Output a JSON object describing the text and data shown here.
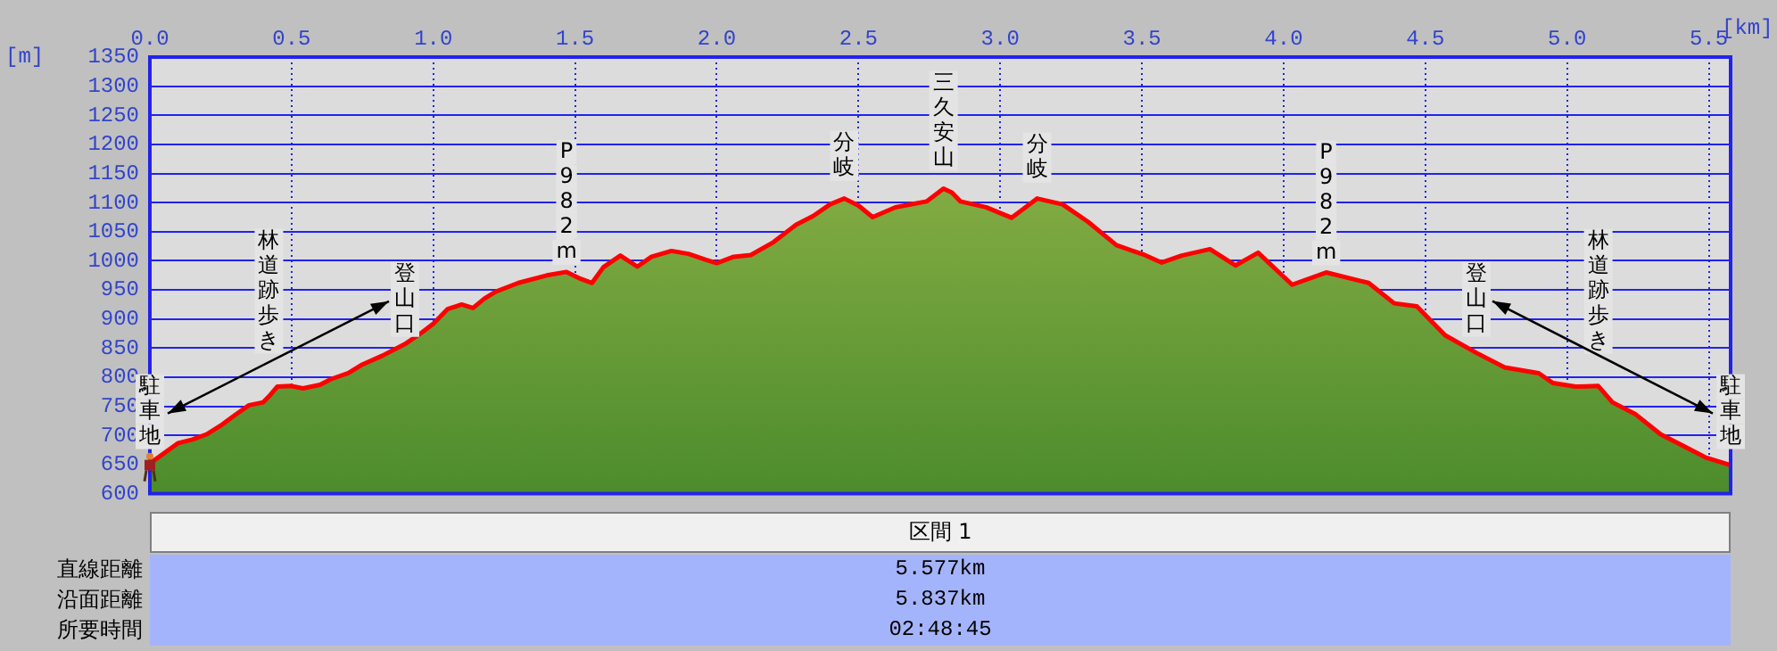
{
  "chart_data": {
    "type": "area",
    "xlabel": "[km]",
    "ylabel": "[m]",
    "x": [
      0,
      0.1,
      0.15,
      0.2,
      0.25,
      0.3,
      0.35,
      0.4,
      0.42,
      0.45,
      0.5,
      0.54,
      0.6,
      0.64,
      0.7,
      0.75,
      0.82,
      0.9,
      0.96,
      1.0,
      1.05,
      1.1,
      1.14,
      1.18,
      1.22,
      1.3,
      1.4,
      1.47,
      1.52,
      1.56,
      1.6,
      1.66,
      1.72,
      1.77,
      1.84,
      1.9,
      1.96,
      2.0,
      2.06,
      2.12,
      2.2,
      2.28,
      2.34,
      2.4,
      2.45,
      2.5,
      2.55,
      2.63,
      2.74,
      2.8,
      2.83,
      2.86,
      2.95,
      3.04,
      3.13,
      3.22,
      3.31,
      3.41,
      3.51,
      3.57,
      3.64,
      3.74,
      3.83,
      3.91,
      4.03,
      4.15,
      4.3,
      4.39,
      4.47,
      4.57,
      4.68,
      4.78,
      4.9,
      4.95,
      5.03,
      5.11,
      5.16,
      5.24,
      5.33,
      5.41,
      5.49,
      5.577
    ],
    "series": [
      {
        "color": "#ff0000",
        "values": [
          652,
          687,
          693,
          702,
          717,
          735,
          752,
          757,
          767,
          784,
          785,
          781,
          787,
          797,
          807,
          822,
          837,
          857,
          877,
          892,
          917,
          925,
          919,
          935,
          947,
          962,
          975,
          981,
          969,
          962,
          989,
          1009,
          990,
          1007,
          1017,
          1012,
          1002,
          996,
          1007,
          1010,
          1032,
          1062,
          1077,
          1097,
          1107,
          1095,
          1075,
          1092,
          1102,
          1124,
          1117,
          1102,
          1092,
          1074,
          1107,
          1097,
          1067,
          1027,
          1010,
          997,
          1009,
          1020,
          992,
          1014,
          959,
          980,
          962,
          927,
          922,
          872,
          842,
          817,
          807,
          790,
          784,
          785,
          757,
          737,
          702,
          682,
          662,
          649
        ]
      }
    ],
    "xlim": [
      0,
      5.577
    ],
    "xticks": [
      {
        "value": 0,
        "label": "0.0"
      },
      {
        "value": 0.5,
        "label": "0.5"
      },
      {
        "value": 1,
        "label": "1.0"
      },
      {
        "value": 1.5,
        "label": "1.5"
      },
      {
        "value": 2,
        "label": "2.0"
      },
      {
        "value": 2.5,
        "label": "2.5"
      },
      {
        "value": 3,
        "label": "3.0"
      },
      {
        "value": 3.5,
        "label": "3.5"
      },
      {
        "value": 4,
        "label": "4.0"
      },
      {
        "value": 4.5,
        "label": "4.5"
      },
      {
        "value": 5,
        "label": "5.0"
      },
      {
        "value": 5.5,
        "label": "5.5"
      }
    ],
    "ylim": [
      600,
      1350
    ],
    "yticks": [
      600,
      650,
      700,
      750,
      800,
      850,
      900,
      950,
      1000,
      1050,
      1100,
      1150,
      1200,
      1250,
      1300,
      1350
    ],
    "grid": true,
    "legend": false,
    "annotations": [
      {
        "text": "駐車地",
        "x": 0,
        "y": 652
      },
      {
        "text": "林道跡歩き",
        "x": 0.42,
        "y": 767
      },
      {
        "text": "登山口",
        "x": 0.9,
        "y": 857
      },
      {
        "text": "P982m",
        "x": 1.47,
        "y": 981
      },
      {
        "text": "分岐",
        "x": 2.45,
        "y": 1107
      },
      {
        "text": "三久安山",
        "x": 2.8,
        "y": 1124
      },
      {
        "text": "分岐",
        "x": 3.13,
        "y": 1107
      },
      {
        "text": "P982m",
        "x": 4.15,
        "y": 980
      },
      {
        "text": "登山口",
        "x": 4.68,
        "y": 842
      },
      {
        "text": "林道跡歩き",
        "x": 5.11,
        "y": 785
      },
      {
        "text": "駐車地",
        "x": 5.577,
        "y": 649
      },
      "区間 1",
      "直線距離",
      "5.577km",
      "沿面距離",
      "5.837km",
      "所要時間",
      "02:48:45"
    ]
  }
}
